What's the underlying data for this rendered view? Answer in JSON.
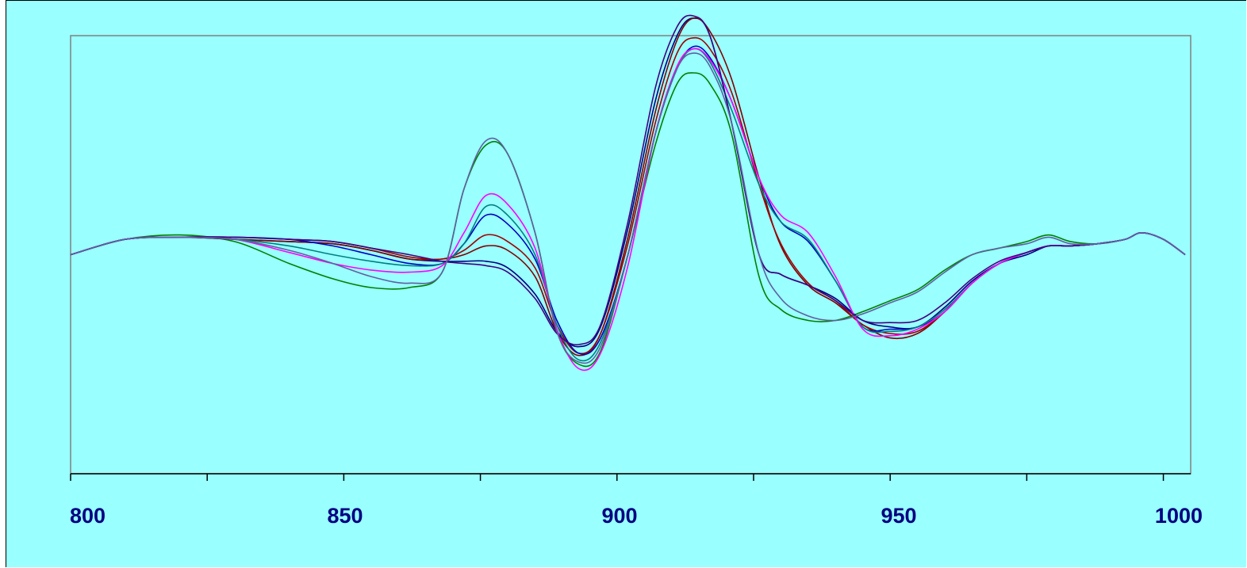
{
  "chart_data": {
    "type": "line",
    "title": "",
    "xlabel": "",
    "ylabel": "",
    "xlim": [
      800,
      1005
    ],
    "ylim": [
      -1.0,
      1.0
    ],
    "x_ticks": [
      800,
      850,
      900,
      950,
      1000
    ],
    "x_tick_labels": [
      "800",
      "850",
      "900",
      "950",
      "1000"
    ],
    "y_axis_visible": false,
    "grid": false,
    "legend": "none",
    "background": "#99ffff",
    "x": [
      800,
      810,
      820,
      830,
      840,
      848,
      855,
      862,
      868,
      872,
      876,
      880,
      885,
      889,
      893,
      897,
      902,
      907,
      911,
      914,
      917,
      921,
      926,
      930,
      935,
      940,
      945,
      950,
      955,
      960,
      965,
      970,
      975,
      979,
      983,
      988,
      993,
      996,
      1000,
      1004
    ],
    "series": [
      {
        "color": "#008000",
        "values": [
          0.0,
          0.07,
          0.09,
          0.06,
          -0.04,
          -0.11,
          -0.15,
          -0.15,
          -0.08,
          0.3,
          0.5,
          0.46,
          0.1,
          -0.35,
          -0.5,
          -0.44,
          0.0,
          0.5,
          0.78,
          0.83,
          0.78,
          0.55,
          -0.1,
          -0.25,
          -0.3,
          -0.3,
          -0.26,
          -0.21,
          -0.16,
          -0.07,
          0.0,
          0.03,
          0.06,
          0.09,
          0.06,
          0.05,
          0.07,
          0.1,
          0.07,
          0.0
        ]
      },
      {
        "color": "#000080",
        "values": [
          0.0,
          0.07,
          0.08,
          0.07,
          0.06,
          0.05,
          0.02,
          -0.02,
          -0.03,
          -0.03,
          -0.03,
          -0.06,
          -0.18,
          -0.35,
          -0.42,
          -0.33,
          0.12,
          0.7,
          1.0,
          1.08,
          1.0,
          0.6,
          0.0,
          -0.09,
          -0.14,
          -0.2,
          -0.3,
          -0.33,
          -0.33,
          -0.24,
          -0.12,
          -0.04,
          0.0,
          0.04,
          0.04,
          0.05,
          0.07,
          0.1,
          0.07,
          0.0
        ]
      },
      {
        "color": "#800000",
        "values": [
          0.0,
          0.07,
          0.08,
          0.07,
          0.06,
          0.05,
          0.02,
          -0.02,
          -0.02,
          0.0,
          0.04,
          0.02,
          -0.1,
          -0.35,
          -0.46,
          -0.36,
          0.08,
          0.65,
          0.98,
          1.08,
          1.02,
          0.8,
          0.35,
          0.04,
          -0.14,
          -0.22,
          -0.32,
          -0.38,
          -0.36,
          -0.26,
          -0.13,
          -0.04,
          0.01,
          0.04,
          0.04,
          0.05,
          0.07,
          0.1,
          0.07,
          0.0
        ]
      },
      {
        "color": "#a00000",
        "values": [
          0.0,
          0.07,
          0.08,
          0.08,
          0.07,
          0.06,
          0.03,
          -0.01,
          -0.02,
          0.02,
          0.09,
          0.06,
          -0.06,
          -0.32,
          -0.45,
          -0.36,
          0.05,
          0.6,
          0.92,
          0.99,
          0.94,
          0.74,
          0.32,
          0.05,
          -0.13,
          -0.21,
          -0.32,
          -0.36,
          -0.35,
          -0.26,
          -0.13,
          -0.04,
          0.01,
          0.04,
          0.04,
          0.05,
          0.07,
          0.1,
          0.07,
          0.0
        ]
      },
      {
        "color": "#0000c0",
        "values": [
          0.0,
          0.07,
          0.08,
          0.08,
          0.07,
          0.04,
          0.0,
          -0.04,
          -0.04,
          0.05,
          0.18,
          0.14,
          -0.02,
          -0.3,
          -0.45,
          -0.38,
          0.0,
          0.55,
          0.85,
          0.95,
          0.9,
          0.7,
          0.35,
          0.15,
          0.06,
          -0.12,
          -0.33,
          -0.34,
          -0.33,
          -0.26,
          -0.13,
          -0.04,
          0.01,
          0.04,
          0.04,
          0.05,
          0.07,
          0.1,
          0.07,
          0.0
        ]
      },
      {
        "color": "#008080",
        "values": [
          0.0,
          0.07,
          0.08,
          0.07,
          0.04,
          0.0,
          -0.03,
          -0.05,
          -0.04,
          0.05,
          0.22,
          0.18,
          0.0,
          -0.32,
          -0.48,
          -0.4,
          0.0,
          0.55,
          0.85,
          0.94,
          0.88,
          0.66,
          0.32,
          0.15,
          0.07,
          -0.12,
          -0.33,
          -0.35,
          -0.33,
          -0.25,
          -0.13,
          -0.04,
          0.01,
          0.04,
          0.04,
          0.05,
          0.07,
          0.1,
          0.07,
          0.0
        ]
      },
      {
        "color": "#ff00ff",
        "values": [
          0.0,
          0.07,
          0.08,
          0.07,
          0.01,
          -0.04,
          -0.07,
          -0.08,
          -0.05,
          0.1,
          0.27,
          0.23,
          0.03,
          -0.34,
          -0.52,
          -0.45,
          -0.05,
          0.55,
          0.86,
          0.94,
          0.89,
          0.7,
          0.35,
          0.18,
          0.1,
          -0.1,
          -0.34,
          -0.37,
          -0.34,
          -0.26,
          -0.13,
          -0.04,
          0.01,
          0.04,
          0.04,
          0.05,
          0.07,
          0.1,
          0.07,
          0.0
        ]
      },
      {
        "color": "#400080",
        "values": [
          0.0,
          0.07,
          0.08,
          0.08,
          0.07,
          0.06,
          0.03,
          0.0,
          -0.03,
          -0.04,
          -0.05,
          -0.08,
          -0.2,
          -0.36,
          -0.41,
          -0.32,
          0.15,
          0.76,
          1.04,
          1.09,
          1.0,
          0.6,
          0.0,
          -0.09,
          -0.14,
          -0.21,
          -0.3,
          -0.31,
          -0.3,
          -0.22,
          -0.11,
          -0.03,
          0.01,
          0.04,
          0.04,
          0.05,
          0.07,
          0.1,
          0.07,
          0.0
        ]
      },
      {
        "color": "#6060a0",
        "values": [
          0.0,
          0.07,
          0.08,
          0.07,
          0.02,
          -0.04,
          -0.1,
          -0.13,
          -0.08,
          0.3,
          0.52,
          0.46,
          0.1,
          -0.35,
          -0.49,
          -0.42,
          0.0,
          0.55,
          0.85,
          0.92,
          0.86,
          0.6,
          0.0,
          -0.2,
          -0.28,
          -0.3,
          -0.27,
          -0.22,
          -0.17,
          -0.08,
          0.0,
          0.03,
          0.05,
          0.08,
          0.05,
          0.05,
          0.07,
          0.1,
          0.07,
          0.0
        ]
      }
    ]
  }
}
